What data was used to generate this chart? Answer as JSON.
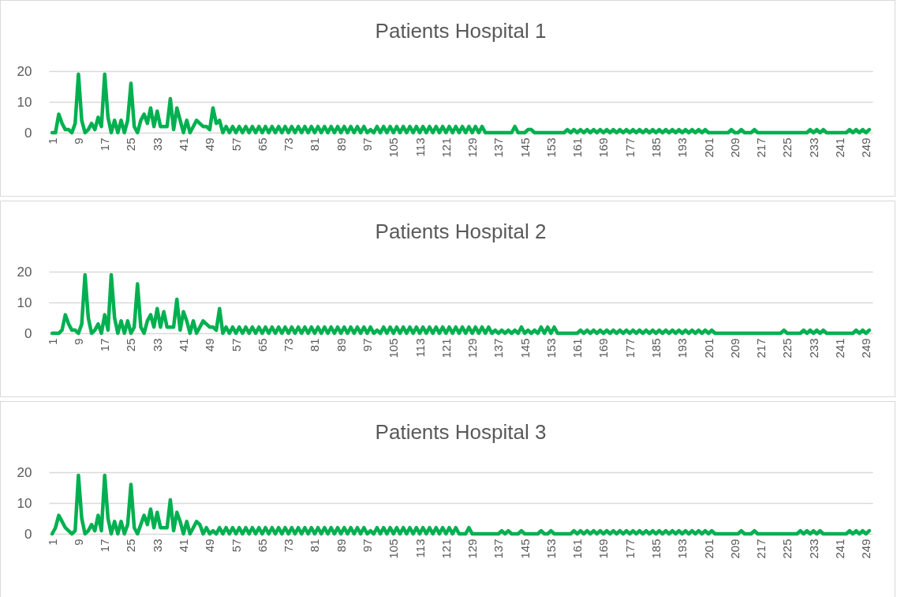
{
  "chart_data": [
    {
      "type": "line",
      "title": "Patients Hospital 1",
      "categories": [
        "1",
        null,
        null,
        null,
        null,
        null,
        null,
        null,
        "9",
        null,
        null,
        null,
        null,
        null,
        null,
        null,
        "17",
        null,
        null,
        null,
        null,
        null,
        null,
        null,
        "25",
        null,
        null,
        null,
        null,
        null,
        null,
        null,
        "33",
        null,
        null,
        null,
        null,
        null,
        null,
        null,
        "41",
        null,
        null,
        null,
        null,
        null,
        null,
        null,
        "49",
        null,
        null,
        null,
        null,
        null,
        null,
        null,
        "57",
        null,
        null,
        null,
        null,
        null,
        null,
        null,
        "65",
        null,
        null,
        null,
        null,
        null,
        null,
        null,
        "73",
        null,
        null,
        null,
        null,
        null,
        null,
        null,
        "81",
        null,
        null,
        null,
        null,
        null,
        null,
        null,
        "89",
        null,
        null,
        null,
        null,
        null,
        null,
        null,
        "97",
        null,
        null,
        null,
        null,
        null,
        null,
        null,
        "105",
        null,
        null,
        null,
        null,
        null,
        null,
        null,
        "113",
        null,
        null,
        null,
        null,
        null,
        null,
        null,
        "121",
        null,
        null,
        null,
        null,
        null,
        null,
        null,
        "129",
        null,
        null,
        null,
        null,
        null,
        null,
        null,
        "137",
        null,
        null,
        null,
        null,
        null,
        null,
        null,
        "145",
        null,
        null,
        null,
        null,
        null,
        null,
        null,
        "153",
        null,
        null,
        null,
        null,
        null,
        null,
        null,
        "161",
        null,
        null,
        null,
        null,
        null,
        null,
        null,
        "169",
        null,
        null,
        null,
        null,
        null,
        null,
        null,
        "177",
        null,
        null,
        null,
        null,
        null,
        null,
        null,
        "185",
        null,
        null,
        null,
        null,
        null,
        null,
        null,
        "193",
        null,
        null,
        null,
        null,
        null,
        null,
        null,
        "201",
        null,
        null,
        null,
        null,
        null,
        null,
        null,
        "209",
        null,
        null,
        null,
        null,
        null,
        null,
        null,
        "217",
        null,
        null,
        null,
        null,
        null,
        null,
        null,
        "225",
        null,
        null,
        null,
        null,
        null,
        null,
        null,
        "233",
        null,
        null,
        null,
        null,
        null,
        null,
        null,
        "241",
        null,
        null,
        null,
        null,
        null,
        null,
        null,
        "249",
        null
      ],
      "series": [
        {
          "color": "#00b050",
          "values": [
            0,
            0,
            6,
            3,
            1,
            1,
            0,
            3,
            19,
            4,
            0,
            1,
            3,
            1,
            5,
            2,
            19,
            5,
            0,
            4,
            0,
            4,
            0,
            4,
            16,
            2,
            0,
            4,
            6,
            3,
            8,
            2,
            7,
            2,
            2,
            2,
            11,
            1,
            8,
            4,
            0,
            4,
            0,
            2,
            4,
            3,
            2,
            2,
            1,
            8,
            3,
            4,
            0,
            2,
            0,
            2,
            0,
            2,
            0,
            2,
            0,
            2,
            0,
            2,
            0,
            2,
            0,
            2,
            0,
            2,
            0,
            2,
            0,
            2,
            0,
            2,
            0,
            2,
            0,
            2,
            0,
            2,
            0,
            2,
            0,
            2,
            0,
            2,
            0,
            2,
            0,
            2,
            0,
            2,
            0,
            2,
            0,
            1,
            0,
            2,
            0,
            2,
            0,
            2,
            0,
            2,
            0,
            2,
            0,
            2,
            0,
            2,
            0,
            2,
            0,
            2,
            0,
            2,
            0,
            2,
            0,
            2,
            0,
            2,
            0,
            2,
            0,
            2,
            0,
            2,
            0,
            2,
            0,
            0,
            0,
            0,
            0,
            0,
            0,
            0,
            0,
            2,
            0,
            0,
            0,
            1,
            1,
            0,
            0,
            0,
            0,
            0,
            0,
            0,
            0,
            0,
            0,
            1,
            0,
            1,
            0,
            1,
            0,
            1,
            0,
            1,
            0,
            1,
            0,
            1,
            0,
            1,
            0,
            1,
            0,
            1,
            0,
            1,
            0,
            1,
            0,
            1,
            0,
            1,
            0,
            1,
            0,
            1,
            0,
            1,
            0,
            1,
            0,
            1,
            0,
            1,
            0,
            1,
            0,
            1,
            0,
            0,
            0,
            0,
            0,
            0,
            0,
            1,
            0,
            0,
            1,
            0,
            0,
            0,
            1,
            0,
            0,
            0,
            0,
            0,
            0,
            0,
            0,
            0,
            0,
            0,
            0,
            0,
            0,
            0,
            0,
            1,
            0,
            1,
            0,
            1,
            0,
            0,
            0,
            0,
            0,
            0,
            0,
            1,
            0,
            1,
            0,
            1,
            0,
            1
          ]
        }
      ],
      "ylim": [
        0,
        20
      ],
      "yticks": [
        0,
        10,
        20
      ],
      "grid": "y"
    },
    {
      "type": "line",
      "title": "Patients Hospital 2",
      "categories": [
        "1",
        null,
        null,
        null,
        null,
        null,
        null,
        null,
        "9",
        null,
        null,
        null,
        null,
        null,
        null,
        null,
        "17",
        null,
        null,
        null,
        null,
        null,
        null,
        null,
        "25",
        null,
        null,
        null,
        null,
        null,
        null,
        null,
        "33",
        null,
        null,
        null,
        null,
        null,
        null,
        null,
        "41",
        null,
        null,
        null,
        null,
        null,
        null,
        null,
        "49",
        null,
        null,
        null,
        null,
        null,
        null,
        null,
        "57",
        null,
        null,
        null,
        null,
        null,
        null,
        null,
        "65",
        null,
        null,
        null,
        null,
        null,
        null,
        null,
        "73",
        null,
        null,
        null,
        null,
        null,
        null,
        null,
        "81",
        null,
        null,
        null,
        null,
        null,
        null,
        null,
        "89",
        null,
        null,
        null,
        null,
        null,
        null,
        null,
        "97",
        null,
        null,
        null,
        null,
        null,
        null,
        null,
        "105",
        null,
        null,
        null,
        null,
        null,
        null,
        null,
        "113",
        null,
        null,
        null,
        null,
        null,
        null,
        null,
        "121",
        null,
        null,
        null,
        null,
        null,
        null,
        null,
        "129",
        null,
        null,
        null,
        null,
        null,
        null,
        null,
        "137",
        null,
        null,
        null,
        null,
        null,
        null,
        null,
        "145",
        null,
        null,
        null,
        null,
        null,
        null,
        null,
        "153",
        null,
        null,
        null,
        null,
        null,
        null,
        null,
        "161",
        null,
        null,
        null,
        null,
        null,
        null,
        null,
        "169",
        null,
        null,
        null,
        null,
        null,
        null,
        null,
        "177",
        null,
        null,
        null,
        null,
        null,
        null,
        null,
        "185",
        null,
        null,
        null,
        null,
        null,
        null,
        null,
        "193",
        null,
        null,
        null,
        null,
        null,
        null,
        null,
        "201",
        null,
        null,
        null,
        null,
        null,
        null,
        null,
        "209",
        null,
        null,
        null,
        null,
        null,
        null,
        null,
        "217",
        null,
        null,
        null,
        null,
        null,
        null,
        null,
        "225",
        null,
        null,
        null,
        null,
        null,
        null,
        null,
        "233",
        null,
        null,
        null,
        null,
        null,
        null,
        null,
        "241",
        null,
        null,
        null,
        null,
        null,
        null,
        null,
        "249",
        null
      ],
      "series": [
        {
          "color": "#00b050",
          "values": [
            0,
            0,
            0,
            1,
            6,
            3,
            1,
            1,
            0,
            3,
            19,
            5,
            0,
            1,
            3,
            0,
            6,
            1,
            19,
            5,
            0,
            4,
            0,
            4,
            0,
            2,
            16,
            2,
            0,
            4,
            6,
            2,
            8,
            2,
            7,
            2,
            2,
            2,
            11,
            1,
            7,
            4,
            0,
            4,
            0,
            2,
            4,
            3,
            2,
            2,
            1,
            8,
            0,
            2,
            0,
            2,
            0,
            2,
            0,
            2,
            0,
            2,
            0,
            2,
            0,
            2,
            0,
            2,
            0,
            2,
            0,
            2,
            0,
            2,
            0,
            2,
            0,
            2,
            0,
            2,
            0,
            2,
            0,
            2,
            0,
            2,
            0,
            2,
            0,
            2,
            0,
            2,
            0,
            2,
            0,
            2,
            0,
            2,
            0,
            1,
            0,
            2,
            0,
            2,
            0,
            2,
            0,
            2,
            0,
            2,
            0,
            2,
            0,
            2,
            0,
            2,
            0,
            2,
            0,
            2,
            0,
            2,
            0,
            2,
            0,
            2,
            0,
            2,
            0,
            2,
            0,
            2,
            0,
            2,
            0,
            1,
            0,
            1,
            0,
            1,
            0,
            1,
            0,
            2,
            0,
            1,
            0,
            1,
            0,
            2,
            0,
            2,
            0,
            2,
            0,
            0,
            0,
            0,
            0,
            0,
            0,
            1,
            0,
            1,
            0,
            1,
            0,
            1,
            0,
            1,
            0,
            1,
            0,
            1,
            0,
            1,
            0,
            1,
            0,
            1,
            0,
            1,
            0,
            1,
            0,
            1,
            0,
            1,
            0,
            1,
            0,
            1,
            0,
            1,
            0,
            1,
            0,
            1,
            0,
            1,
            0,
            1,
            0,
            0,
            0,
            0,
            0,
            0,
            0,
            0,
            0,
            0,
            0,
            0,
            0,
            0,
            0,
            0,
            0,
            0,
            0,
            0,
            0,
            1,
            0,
            0,
            0,
            0,
            0,
            1,
            0,
            1,
            0,
            1,
            0,
            1,
            0,
            0,
            0,
            0,
            0,
            0,
            0,
            0,
            0,
            1,
            0,
            1,
            0,
            1
          ]
        }
      ],
      "ylim": [
        0,
        20
      ],
      "yticks": [
        0,
        10,
        20
      ],
      "grid": "y"
    },
    {
      "type": "line",
      "title": "Patients Hospital 3",
      "categories": [
        "1",
        null,
        null,
        null,
        null,
        null,
        null,
        null,
        "9",
        null,
        null,
        null,
        null,
        null,
        null,
        null,
        "17",
        null,
        null,
        null,
        null,
        null,
        null,
        null,
        "25",
        null,
        null,
        null,
        null,
        null,
        null,
        null,
        "33",
        null,
        null,
        null,
        null,
        null,
        null,
        null,
        "41",
        null,
        null,
        null,
        null,
        null,
        null,
        null,
        "49",
        null,
        null,
        null,
        null,
        null,
        null,
        null,
        "57",
        null,
        null,
        null,
        null,
        null,
        null,
        null,
        "65",
        null,
        null,
        null,
        null,
        null,
        null,
        null,
        "73",
        null,
        null,
        null,
        null,
        null,
        null,
        null,
        "81",
        null,
        null,
        null,
        null,
        null,
        null,
        null,
        "89",
        null,
        null,
        null,
        null,
        null,
        null,
        null,
        "97",
        null,
        null,
        null,
        null,
        null,
        null,
        null,
        "105",
        null,
        null,
        null,
        null,
        null,
        null,
        null,
        "113",
        null,
        null,
        null,
        null,
        null,
        null,
        null,
        "121",
        null,
        null,
        null,
        null,
        null,
        null,
        null,
        "129",
        null,
        null,
        null,
        null,
        null,
        null,
        null,
        "137",
        null,
        null,
        null,
        null,
        null,
        null,
        null,
        "145",
        null,
        null,
        null,
        null,
        null,
        null,
        null,
        "153",
        null,
        null,
        null,
        null,
        null,
        null,
        null,
        "161",
        null,
        null,
        null,
        null,
        null,
        null,
        null,
        "169",
        null,
        null,
        null,
        null,
        null,
        null,
        null,
        "177",
        null,
        null,
        null,
        null,
        null,
        null,
        null,
        "185",
        null,
        null,
        null,
        null,
        null,
        null,
        null,
        "193",
        null,
        null,
        null,
        null,
        null,
        null,
        null,
        "201",
        null,
        null,
        null,
        null,
        null,
        null,
        null,
        "209",
        null,
        null,
        null,
        null,
        null,
        null,
        null,
        "217",
        null,
        null,
        null,
        null,
        null,
        null,
        null,
        "225",
        null,
        null,
        null,
        null,
        null,
        null,
        null,
        "233",
        null,
        null,
        null,
        null,
        null,
        null,
        null,
        "241",
        null,
        null,
        null,
        null,
        null,
        null,
        null,
        "249",
        null
      ],
      "series": [
        {
          "color": "#00b050",
          "values": [
            0,
            2,
            6,
            4,
            2,
            1,
            0,
            1,
            19,
            5,
            0,
            1,
            3,
            1,
            6,
            1,
            19,
            5,
            0,
            4,
            0,
            4,
            0,
            3,
            16,
            2,
            0,
            3,
            6,
            3,
            8,
            2,
            7,
            2,
            2,
            2,
            11,
            1,
            7,
            4,
            0,
            4,
            0,
            2,
            4,
            3,
            0,
            2,
            0,
            1,
            0,
            2,
            0,
            2,
            0,
            2,
            0,
            2,
            0,
            2,
            0,
            2,
            0,
            2,
            0,
            2,
            0,
            2,
            0,
            2,
            0,
            2,
            0,
            2,
            0,
            2,
            0,
            2,
            0,
            2,
            0,
            2,
            0,
            2,
            0,
            2,
            0,
            2,
            0,
            2,
            0,
            2,
            0,
            2,
            0,
            2,
            0,
            1,
            0,
            2,
            0,
            2,
            0,
            2,
            0,
            2,
            0,
            2,
            0,
            2,
            0,
            2,
            0,
            2,
            0,
            2,
            0,
            2,
            0,
            2,
            0,
            2,
            0,
            2,
            0,
            0,
            0,
            2,
            0,
            0,
            0,
            0,
            0,
            0,
            0,
            0,
            0,
            1,
            0,
            1,
            0,
            0,
            0,
            1,
            0,
            0,
            0,
            0,
            0,
            1,
            0,
            0,
            1,
            0,
            0,
            0,
            0,
            0,
            0,
            1,
            0,
            1,
            0,
            1,
            0,
            1,
            0,
            1,
            0,
            1,
            0,
            1,
            0,
            1,
            0,
            1,
            0,
            1,
            0,
            1,
            0,
            1,
            0,
            1,
            0,
            1,
            0,
            1,
            0,
            1,
            0,
            1,
            0,
            1,
            0,
            1,
            0,
            1,
            0,
            1,
            0,
            1,
            0,
            0,
            0,
            0,
            0,
            0,
            0,
            0,
            1,
            0,
            0,
            0,
            1,
            0,
            0,
            0,
            0,
            0,
            0,
            0,
            0,
            0,
            0,
            0,
            0,
            0,
            1,
            0,
            1,
            0,
            1,
            0,
            1,
            0,
            0,
            0,
            0,
            0,
            0,
            0,
            0,
            1,
            0,
            1,
            0,
            1,
            0,
            1
          ]
        }
      ],
      "ylim": [
        0,
        20
      ],
      "yticks": [
        0,
        10,
        20
      ],
      "grid": "y"
    }
  ]
}
